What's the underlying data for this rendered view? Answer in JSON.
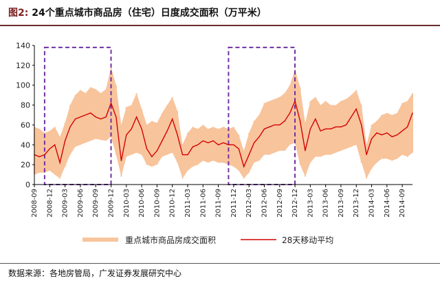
{
  "header": {
    "fig_label": "图2:",
    "title": "24个重点城市商品房（住宅）日度成交面积（万平米）"
  },
  "footer": {
    "source": "数据来源：各地房管局，广发证券发展研究中心"
  },
  "colors": {
    "daily": "#f8c49c",
    "ma": "#d40000",
    "highlight": "#7030a0",
    "rule": "#6b2a2a"
  },
  "chart_data": {
    "type": "line",
    "title": "",
    "xlabel": "",
    "ylabel": "",
    "ylim": [
      0,
      140
    ],
    "yticks": [
      0,
      20,
      40,
      60,
      80,
      100,
      120,
      140
    ],
    "grid": false,
    "legend_position": "bottom",
    "x_ticks": [
      "2008-09",
      "2008-12",
      "2009-03",
      "2009-06",
      "2009-09",
      "2009-12",
      "2010-03",
      "2010-06",
      "2010-09",
      "2010-12",
      "2011-03",
      "2011-06",
      "2011-09",
      "2011-12",
      "2012-03",
      "2012-06",
      "2012-09",
      "2012-12",
      "2013-03",
      "2013-06",
      "2013-09",
      "2013-12",
      "2014-03",
      "2014-06",
      "2014-09"
    ],
    "series": [
      {
        "name": "重点城市商品房成交面积",
        "style": "band",
        "x": [
          "2008-09",
          "2008-10",
          "2008-11",
          "2008-12",
          "2009-01",
          "2009-02",
          "2009-03",
          "2009-04",
          "2009-05",
          "2009-06",
          "2009-07",
          "2009-08",
          "2009-09",
          "2009-10",
          "2009-11",
          "2009-12",
          "2010-01",
          "2010-02",
          "2010-03",
          "2010-04",
          "2010-05",
          "2010-06",
          "2010-07",
          "2010-08",
          "2010-09",
          "2010-10",
          "2010-11",
          "2010-12",
          "2011-01",
          "2011-02",
          "2011-03",
          "2011-04",
          "2011-05",
          "2011-06",
          "2011-07",
          "2011-08",
          "2011-09",
          "2011-10",
          "2011-11",
          "2011-12",
          "2012-01",
          "2012-02",
          "2012-03",
          "2012-04",
          "2012-05",
          "2012-06",
          "2012-07",
          "2012-08",
          "2012-09",
          "2012-10",
          "2012-11",
          "2012-12",
          "2013-01",
          "2013-02",
          "2013-03",
          "2013-04",
          "2013-05",
          "2013-06",
          "2013-07",
          "2013-08",
          "2013-09",
          "2013-10",
          "2013-11",
          "2013-12",
          "2014-01",
          "2014-02",
          "2014-03",
          "2014-04",
          "2014-05",
          "2014-06",
          "2014-07",
          "2014-08",
          "2014-09",
          "2014-10",
          "2014-11"
        ],
        "low": [
          10,
          12,
          12,
          14,
          10,
          6,
          18,
          30,
          38,
          40,
          42,
          44,
          46,
          45,
          44,
          48,
          30,
          8,
          28,
          30,
          32,
          30,
          20,
          18,
          20,
          28,
          30,
          32,
          22,
          6,
          14,
          18,
          20,
          24,
          22,
          24,
          22,
          22,
          20,
          18,
          14,
          6,
          12,
          22,
          24,
          30,
          30,
          32,
          34,
          34,
          40,
          42,
          20,
          8,
          22,
          28,
          28,
          30,
          30,
          32,
          34,
          36,
          38,
          40,
          22,
          6,
          16,
          22,
          26,
          26,
          24,
          26,
          30,
          28,
          32
        ],
        "high": [
          58,
          56,
          52,
          54,
          58,
          48,
          62,
          80,
          90,
          95,
          92,
          98,
          96,
          92,
          96,
          118,
          100,
          60,
          78,
          80,
          92,
          76,
          60,
          64,
          62,
          72,
          80,
          88,
          74,
          40,
          52,
          58,
          56,
          60,
          56,
          58,
          56,
          58,
          56,
          58,
          50,
          34,
          52,
          64,
          70,
          82,
          84,
          86,
          88,
          92,
          100,
          116,
          98,
          62,
          84,
          88,
          80,
          84,
          80,
          80,
          84,
          86,
          90,
          95,
          80,
          40,
          60,
          64,
          70,
          72,
          70,
          72,
          82,
          84,
          92
        ]
      },
      {
        "name": "28天移动平均",
        "style": "line",
        "x": [
          "2008-09",
          "2008-10",
          "2008-11",
          "2008-12",
          "2009-01",
          "2009-02",
          "2009-03",
          "2009-04",
          "2009-05",
          "2009-06",
          "2009-07",
          "2009-08",
          "2009-09",
          "2009-10",
          "2009-11",
          "2009-12",
          "2010-01",
          "2010-02",
          "2010-03",
          "2010-04",
          "2010-05",
          "2010-06",
          "2010-07",
          "2010-08",
          "2010-09",
          "2010-10",
          "2010-11",
          "2010-12",
          "2011-01",
          "2011-02",
          "2011-03",
          "2011-04",
          "2011-05",
          "2011-06",
          "2011-07",
          "2011-08",
          "2011-09",
          "2011-10",
          "2011-11",
          "2011-12",
          "2012-01",
          "2012-02",
          "2012-03",
          "2012-04",
          "2012-05",
          "2012-06",
          "2012-07",
          "2012-08",
          "2012-09",
          "2012-10",
          "2012-11",
          "2012-12",
          "2013-01",
          "2013-02",
          "2013-03",
          "2013-04",
          "2013-05",
          "2013-06",
          "2013-07",
          "2013-08",
          "2013-09",
          "2013-10",
          "2013-11",
          "2013-12",
          "2014-01",
          "2014-02",
          "2014-03",
          "2014-04",
          "2014-05",
          "2014-06",
          "2014-07",
          "2014-08",
          "2014-09",
          "2014-10",
          "2014-11"
        ],
        "values": [
          30,
          28,
          30,
          36,
          40,
          22,
          44,
          58,
          66,
          68,
          70,
          72,
          68,
          66,
          68,
          82,
          68,
          24,
          50,
          56,
          68,
          56,
          36,
          28,
          34,
          44,
          54,
          66,
          50,
          30,
          30,
          38,
          40,
          44,
          42,
          44,
          40,
          42,
          40,
          40,
          36,
          18,
          30,
          42,
          48,
          56,
          58,
          60,
          60,
          64,
          72,
          84,
          64,
          34,
          56,
          66,
          54,
          56,
          56,
          58,
          58,
          60,
          68,
          76,
          60,
          30,
          46,
          52,
          50,
          52,
          48,
          50,
          54,
          58,
          72
        ]
      }
    ],
    "highlight_boxes": [
      {
        "x_start": "2008-11",
        "x_end": "2009-12",
        "y_start": 0,
        "y_end": 138
      },
      {
        "x_start": "2011-11",
        "x_end": "2012-12",
        "y_start": 0,
        "y_end": 138
      }
    ]
  }
}
